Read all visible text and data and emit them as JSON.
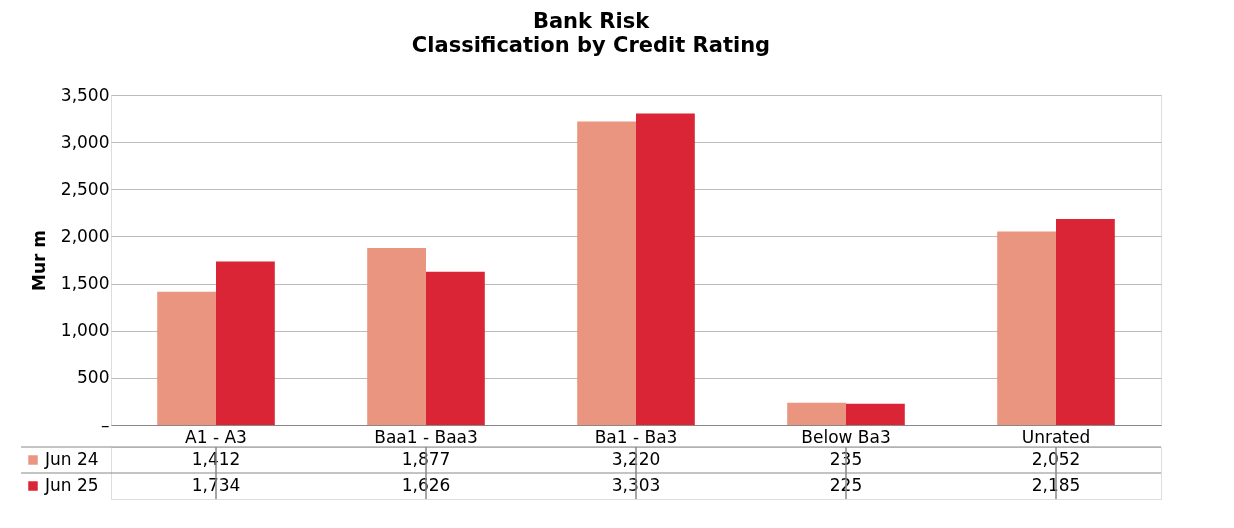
{
  "chart_data": {
    "type": "bar",
    "title": "Bank Risk",
    "subtitle": "Classification by Credit Rating",
    "ylabel": "Mur m",
    "categories": [
      "A1 - A3",
      "Baa1 - Baa3",
      "Ba1 - Ba3",
      "Below Ba3",
      "Unrated"
    ],
    "series": [
      {
        "name": "Jun 24",
        "color": "#e99580",
        "values": [
          1412,
          1877,
          3220,
          235,
          2052
        ],
        "value_labels": [
          "1,412",
          "1,877",
          "3,220",
          "235",
          "2,052"
        ]
      },
      {
        "name": "Jun 25",
        "color": "#d92535",
        "values": [
          1734,
          1626,
          3303,
          225,
          2185
        ],
        "value_labels": [
          "1,734",
          "1,626",
          "3,303",
          "225",
          "2,185"
        ]
      }
    ],
    "ylim": [
      0,
      3500
    ],
    "yticks": [
      {
        "value": 0,
        "label": "–"
      },
      500,
      {
        "value": 1000,
        "label": "1,000"
      },
      {
        "value": 1500,
        "label": "1,500"
      },
      {
        "value": 2000,
        "label": "2,000"
      },
      {
        "value": 2500,
        "label": "2,500"
      },
      {
        "value": 3000,
        "label": "3,000"
      },
      {
        "value": 3500,
        "label": "3,500"
      }
    ],
    "grid": "y",
    "legend": "bottom"
  }
}
